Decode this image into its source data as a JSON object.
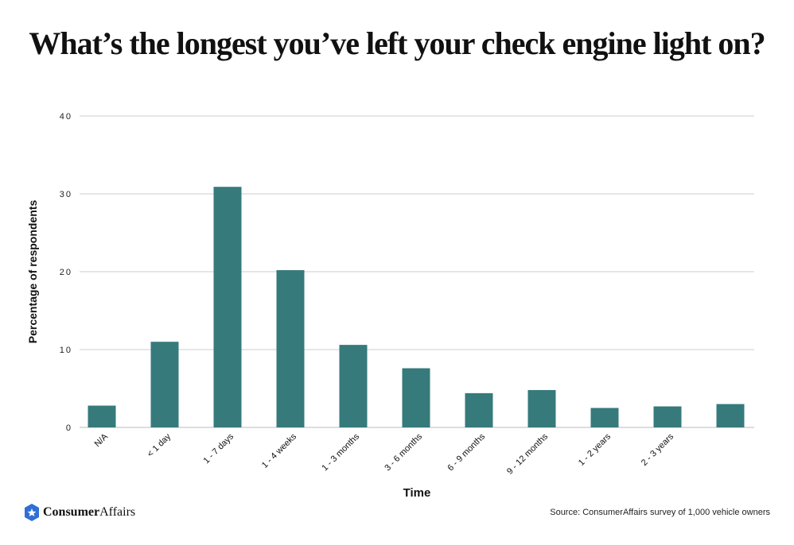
{
  "chart_data": {
    "type": "bar",
    "title": "What’s the longest you’ve left your check engine light on?",
    "xlabel": "Time",
    "ylabel": "Percentage of respondents",
    "ylim": [
      0,
      40
    ],
    "yticks": [
      0,
      10,
      20,
      30,
      40
    ],
    "grid": true,
    "categories": [
      "N/A",
      "< 1 day",
      "1 - 7 days",
      "1 - 4 weeks",
      "1 - 3 months",
      "3 - 6 months",
      "6 - 9 months",
      "9 - 12 months",
      "1 - 2 years",
      "2 - 3 years",
      ""
    ],
    "values": [
      2.8,
      11.0,
      30.9,
      20.2,
      10.6,
      7.6,
      4.4,
      4.8,
      2.5,
      2.7,
      3.0
    ],
    "bar_color": "#367a7c"
  },
  "source": "Source: ConsumerAffairs survey of 1,000 vehicle owners",
  "logo": {
    "bold": "Consumer",
    "regular": "Affairs",
    "color": "#2f6fd6"
  }
}
